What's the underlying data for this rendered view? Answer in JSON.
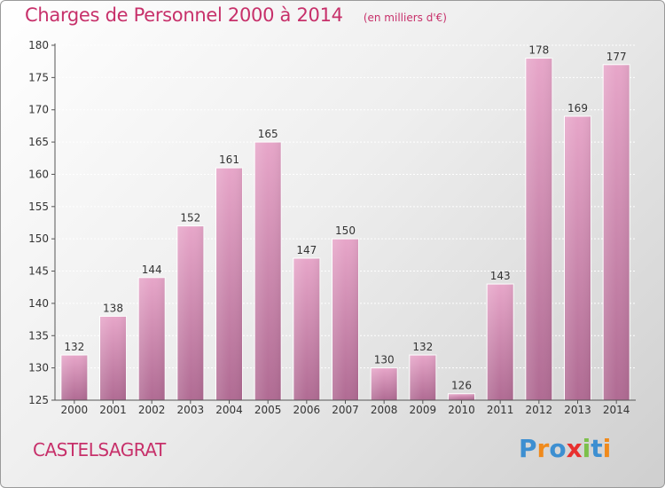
{
  "title": "Charges de Personnel 2000 à 2014",
  "unit_note": "(en milliers d'€)",
  "commune": "CASTELSAGRAT",
  "brand": {
    "letters": [
      "P",
      "r",
      "o",
      "x",
      "i",
      "t",
      "i"
    ],
    "colors": [
      "#3d8fd1",
      "#f08a1c",
      "#3d8fd1",
      "#e8302f",
      "#7cc04b",
      "#3d8fd1",
      "#f08a1c"
    ]
  },
  "colors": {
    "accent": "#c7306a",
    "bar_top": "#e7a6c9",
    "bar_bottom": "#b06b93"
  },
  "chart_data": {
    "type": "bar",
    "categories": [
      "2000",
      "2001",
      "2002",
      "2003",
      "2004",
      "2005",
      "2006",
      "2007",
      "2008",
      "2009",
      "2010",
      "2011",
      "2012",
      "2013",
      "2014"
    ],
    "values": [
      132,
      138,
      144,
      152,
      161,
      165,
      147,
      150,
      130,
      132,
      126,
      143,
      178,
      169,
      177
    ],
    "ylim": [
      125,
      180
    ],
    "yticks": [
      125,
      130,
      135,
      140,
      145,
      150,
      155,
      160,
      165,
      170,
      175,
      180
    ],
    "grid": true,
    "data_labels": true
  }
}
